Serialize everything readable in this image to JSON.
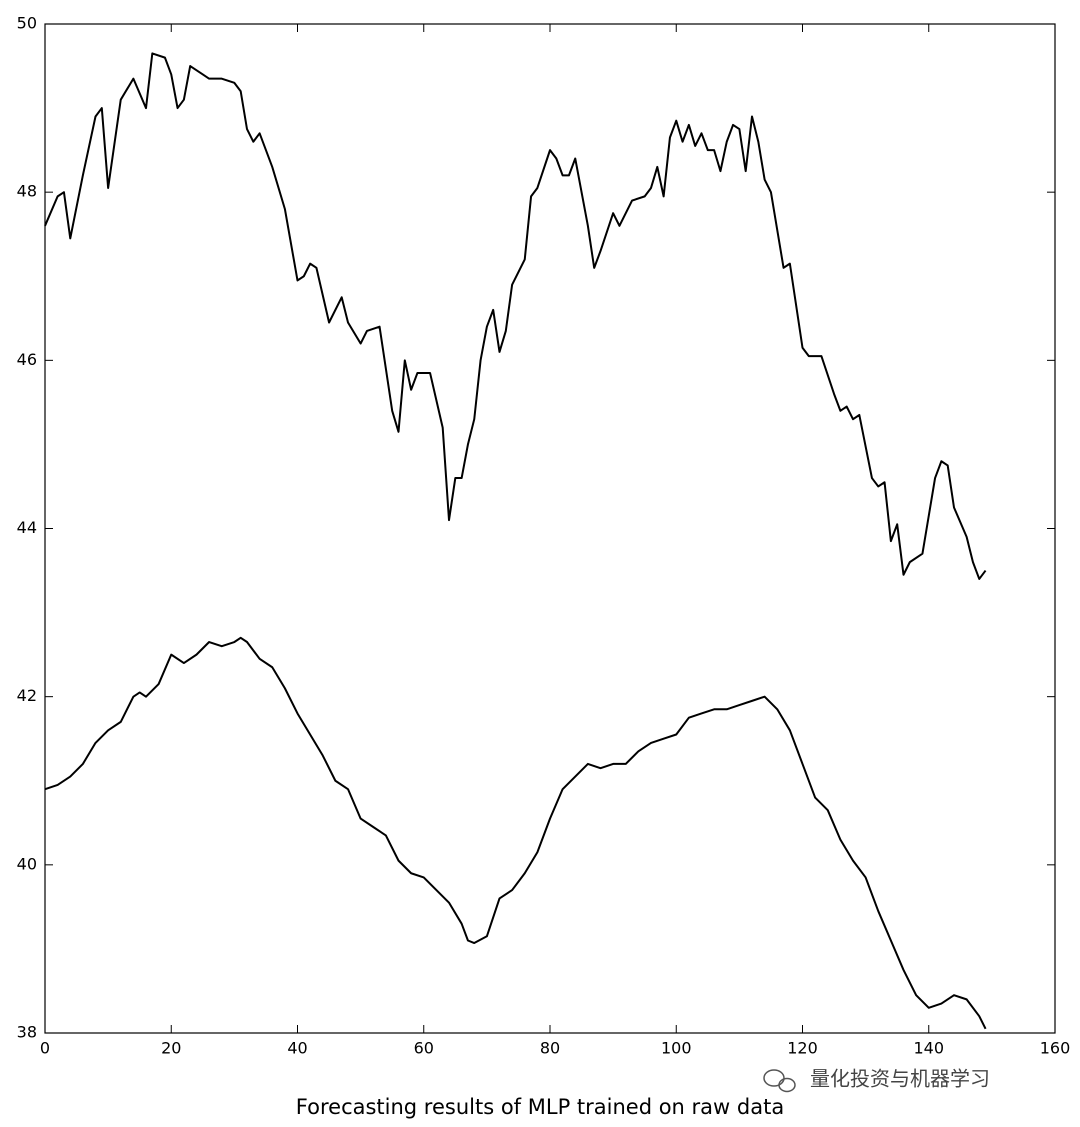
{
  "chart_data": {
    "type": "line",
    "caption": "Forecasting results of MLP trained on raw data",
    "watermark": "量化投资与机器学习",
    "xlim": [
      0,
      160
    ],
    "xticks": [
      0,
      20,
      40,
      60,
      80,
      100,
      120,
      140,
      160
    ],
    "ylim": [
      38,
      50
    ],
    "yticks": [
      38,
      40,
      42,
      44,
      46,
      48,
      50
    ],
    "grid": false,
    "series": [
      {
        "color": "#000000",
        "x": [
          0,
          2,
          3,
          4,
          6,
          8,
          9,
          10,
          12,
          14,
          16,
          17,
          19,
          20,
          21,
          22,
          23,
          25,
          26,
          28,
          30,
          31,
          32,
          33,
          34,
          36,
          38,
          40,
          41,
          42,
          43,
          45,
          47,
          48,
          50,
          51,
          53,
          55,
          56,
          57,
          58,
          59,
          61,
          63,
          64,
          65,
          66,
          67,
          68,
          69,
          70,
          71,
          72,
          73,
          74,
          76,
          77,
          78,
          80,
          81,
          82,
          83,
          84,
          86,
          87,
          88,
          90,
          91,
          93,
          95,
          96,
          97,
          98,
          99,
          100,
          101,
          102,
          103,
          104,
          105,
          106,
          107,
          108,
          109,
          110,
          111,
          112,
          113,
          114,
          115,
          117,
          118,
          120,
          121,
          123,
          125,
          126,
          127,
          128,
          129,
          131,
          132,
          133,
          134,
          135,
          136,
          137,
          139,
          141,
          142,
          143,
          144,
          146,
          147,
          148,
          149
        ],
        "values": [
          47.6,
          47.95,
          48.0,
          47.45,
          48.2,
          48.9,
          49.0,
          48.05,
          49.1,
          49.35,
          49.0,
          49.65,
          49.6,
          49.4,
          49.0,
          49.1,
          49.5,
          49.4,
          49.35,
          49.35,
          49.3,
          49.2,
          48.75,
          48.6,
          48.7,
          48.3,
          47.8,
          46.95,
          47.0,
          47.15,
          47.1,
          46.45,
          46.75,
          46.45,
          46.2,
          46.35,
          46.4,
          45.4,
          45.15,
          46.0,
          45.65,
          45.85,
          45.85,
          45.2,
          44.1,
          44.6,
          44.6,
          45.0,
          45.3,
          46.0,
          46.4,
          46.6,
          46.1,
          46.35,
          46.9,
          47.2,
          47.95,
          48.05,
          48.5,
          48.4,
          48.2,
          48.2,
          48.4,
          47.6,
          47.1,
          47.3,
          47.75,
          47.6,
          47.9,
          47.95,
          48.05,
          48.3,
          47.95,
          48.65,
          48.85,
          48.6,
          48.8,
          48.55,
          48.7,
          48.5,
          48.5,
          48.25,
          48.6,
          48.8,
          48.75,
          48.25,
          48.9,
          48.6,
          48.15,
          48.0,
          47.1,
          47.15,
          46.15,
          46.05,
          46.05,
          45.6,
          45.4,
          45.45,
          45.3,
          45.35,
          44.6,
          44.5,
          44.55,
          43.85,
          44.05,
          43.45,
          43.6,
          43.7,
          44.6,
          44.8,
          44.75,
          44.25,
          43.9,
          43.6,
          43.4,
          43.5
        ]
      },
      {
        "color": "#000000",
        "x": [
          0,
          2,
          4,
          6,
          8,
          10,
          12,
          14,
          15,
          16,
          18,
          20,
          22,
          24,
          26,
          28,
          30,
          31,
          32,
          34,
          36,
          38,
          40,
          42,
          44,
          46,
          48,
          50,
          52,
          54,
          56,
          58,
          60,
          62,
          64,
          66,
          67,
          68,
          70,
          72,
          74,
          76,
          78,
          80,
          82,
          84,
          86,
          88,
          90,
          92,
          94,
          96,
          98,
          100,
          102,
          104,
          106,
          108,
          110,
          112,
          114,
          116,
          118,
          120,
          122,
          124,
          126,
          128,
          130,
          132,
          134,
          136,
          138,
          140,
          142,
          144,
          146,
          148,
          149
        ],
        "values": [
          40.9,
          40.95,
          41.05,
          41.2,
          41.45,
          41.6,
          41.7,
          42.0,
          42.05,
          42.0,
          42.15,
          42.5,
          42.4,
          42.5,
          42.65,
          42.6,
          42.65,
          42.7,
          42.65,
          42.45,
          42.35,
          42.1,
          41.8,
          41.55,
          41.3,
          41.0,
          40.9,
          40.55,
          40.45,
          40.35,
          40.05,
          39.9,
          39.85,
          39.7,
          39.55,
          39.3,
          39.1,
          39.07,
          39.15,
          39.6,
          39.7,
          39.9,
          40.15,
          40.55,
          40.9,
          41.05,
          41.2,
          41.15,
          41.2,
          41.2,
          41.35,
          41.45,
          41.5,
          41.55,
          41.75,
          41.8,
          41.85,
          41.85,
          41.9,
          41.95,
          42.0,
          41.85,
          41.6,
          41.2,
          40.8,
          40.65,
          40.3,
          40.05,
          39.85,
          39.45,
          39.1,
          38.75,
          38.45,
          38.3,
          38.35,
          38.45,
          38.4,
          38.2,
          38.05
        ]
      }
    ]
  }
}
